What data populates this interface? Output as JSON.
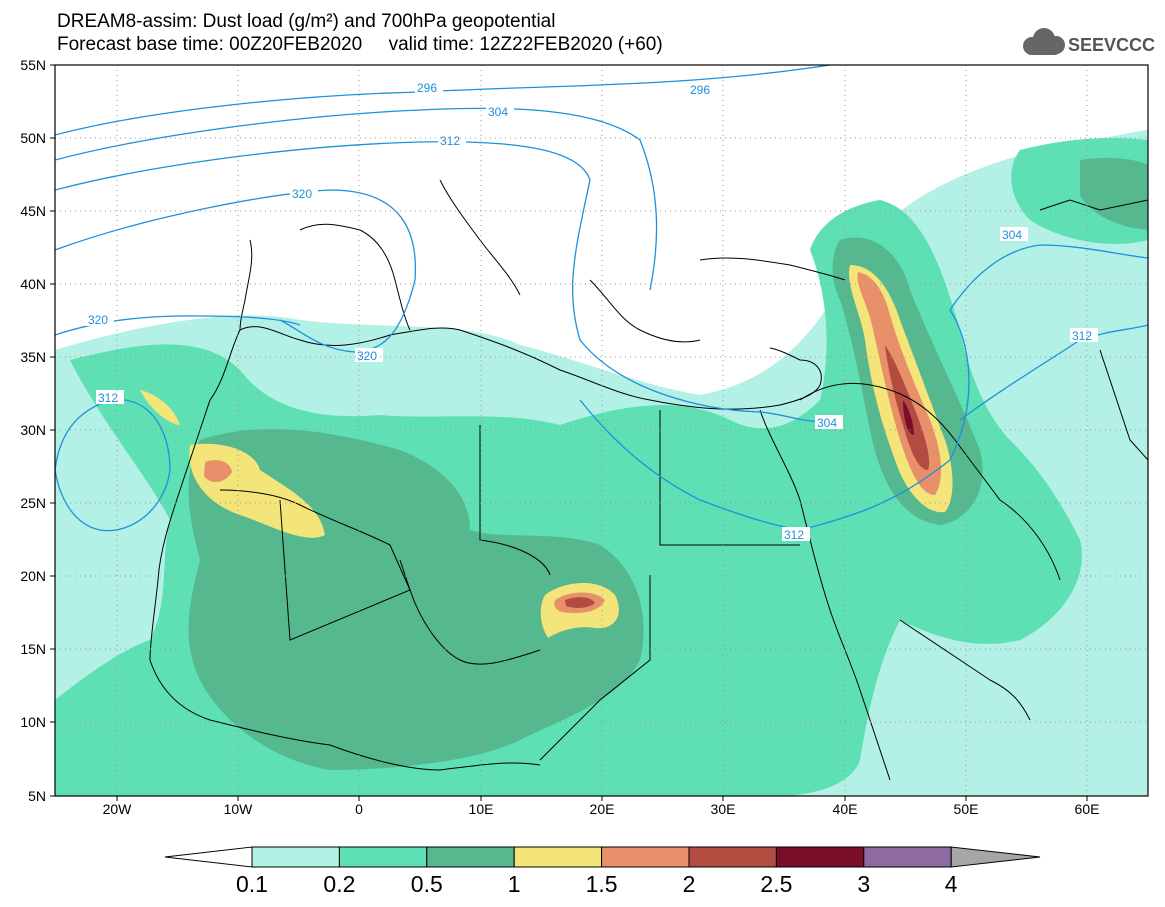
{
  "header": {
    "line1": "DREAM8-assim: Dust load (g/m²) and 700hPa geopotential",
    "line2": "Forecast base time: 00Z20FEB2020     valid time: 12Z22FEB2020 (+60)",
    "logo_text": "SEEVCCC"
  },
  "axes": {
    "lat_labels": [
      "55N",
      "50N",
      "45N",
      "40N",
      "35N",
      "30N",
      "25N",
      "20N",
      "15N",
      "10N",
      "5N"
    ],
    "lon_labels": [
      "20W",
      "10W",
      "0",
      "10E",
      "20E",
      "30E",
      "40E",
      "50E",
      "60E"
    ]
  },
  "colorbar": {
    "labels": [
      "0.1",
      "0.2",
      "0.5",
      "1",
      "1.5",
      "2",
      "2.5",
      "3",
      "4"
    ],
    "colors": [
      "#b3f0e6",
      "#5ee0b4",
      "#55b88f",
      "#f3e57a",
      "#e8906a",
      "#b34c40",
      "#7a0e2a",
      "#8e6aa0"
    ],
    "over_color": "#a6a6a6"
  },
  "contours": {
    "color": "#1e90dc",
    "labels": [
      "296",
      "296",
      "304",
      "304",
      "304",
      "312",
      "312",
      "312",
      "312",
      "320",
      "320",
      "320"
    ]
  }
}
